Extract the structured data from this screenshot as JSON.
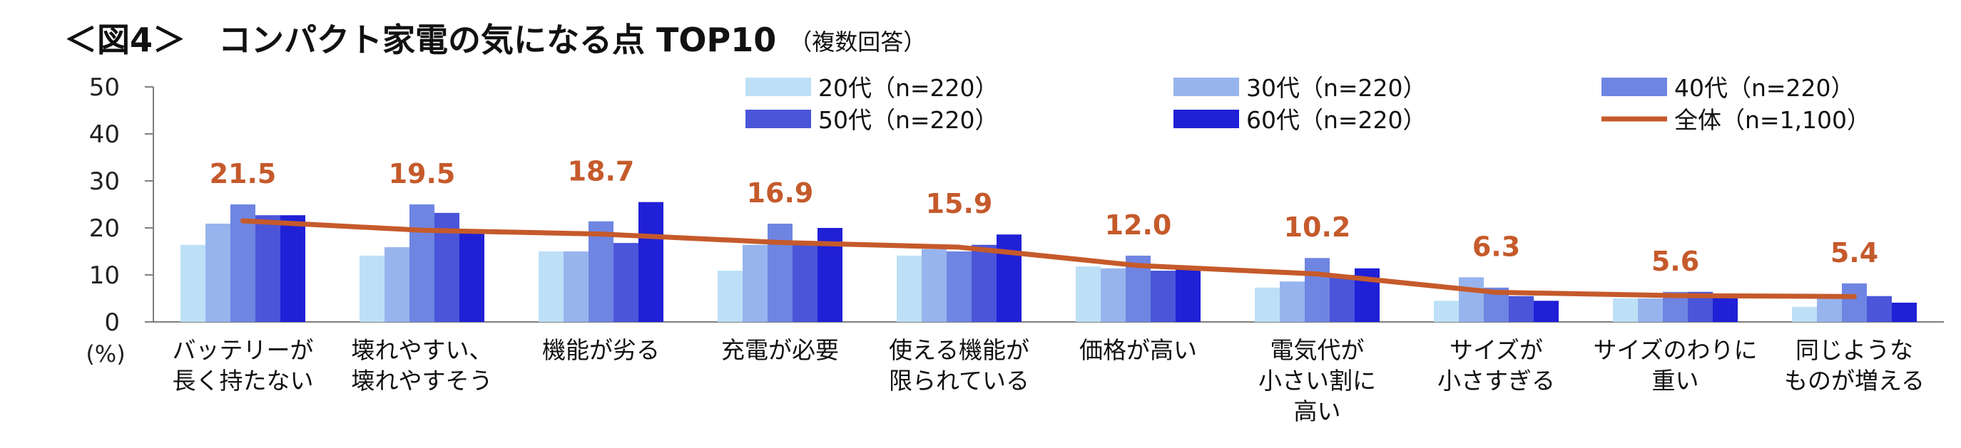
{
  "chart_data": {
    "type": "bar",
    "title": "＜図4＞　コンパクト家電の気になる点 TOP10",
    "title_note": "（複数回答）",
    "ylabel": "(%)",
    "ylim": [
      0,
      50
    ],
    "yticks": [
      0,
      10,
      20,
      30,
      40,
      50
    ],
    "grid": false,
    "legend_position": "top-right",
    "categories": [
      [
        "バッテリーが",
        "長く持たない"
      ],
      [
        "壊れやすい、",
        "壊れやすそう"
      ],
      [
        "機能が劣る"
      ],
      [
        "充電が必要"
      ],
      [
        "使える機能が",
        "限られている"
      ],
      [
        "価格が高い"
      ],
      [
        "電気代が",
        "小さい割に",
        "高い"
      ],
      [
        "サイズが",
        "小さすぎる"
      ],
      [
        "サイズのわりに",
        "重い"
      ],
      [
        "同じような",
        "ものが増える"
      ]
    ],
    "series": [
      {
        "name": "20代（n=220）",
        "type": "bar",
        "color": "#bde0f7",
        "values": [
          16.4,
          14.1,
          15.0,
          10.9,
          14.1,
          11.8,
          7.3,
          4.5,
          5.0,
          3.2
        ]
      },
      {
        "name": "30代（n=220）",
        "type": "bar",
        "color": "#97b4ee",
        "values": [
          20.9,
          15.9,
          15.0,
          16.4,
          15.5,
          11.4,
          8.6,
          9.5,
          5.0,
          5.0
        ]
      },
      {
        "name": "40代（n=220）",
        "type": "bar",
        "color": "#6f85e2",
        "values": [
          25.0,
          25.0,
          21.4,
          20.9,
          15.0,
          14.1,
          13.6,
          7.3,
          6.4,
          8.2
        ]
      },
      {
        "name": "50代（n=220）",
        "type": "bar",
        "color": "#4a55d9",
        "values": [
          22.7,
          23.2,
          16.8,
          16.4,
          16.4,
          10.9,
          10.0,
          5.5,
          6.4,
          5.5
        ]
      },
      {
        "name": "60代（n=220）",
        "type": "bar",
        "color": "#2020d6",
        "values": [
          22.7,
          19.5,
          25.5,
          20.0,
          18.6,
          11.8,
          11.4,
          4.5,
          5.5,
          4.1
        ]
      },
      {
        "name": "全体（n=1,100）",
        "type": "line",
        "color": "#c55a2b",
        "values": [
          21.5,
          19.5,
          18.7,
          16.9,
          15.9,
          12.0,
          10.2,
          6.3,
          5.6,
          5.4
        ]
      }
    ],
    "data_labels": [
      "21.5",
      "19.5",
      "18.7",
      "16.9",
      "15.9",
      "12.0",
      "10.2",
      "6.3",
      "5.6",
      "5.4"
    ]
  }
}
